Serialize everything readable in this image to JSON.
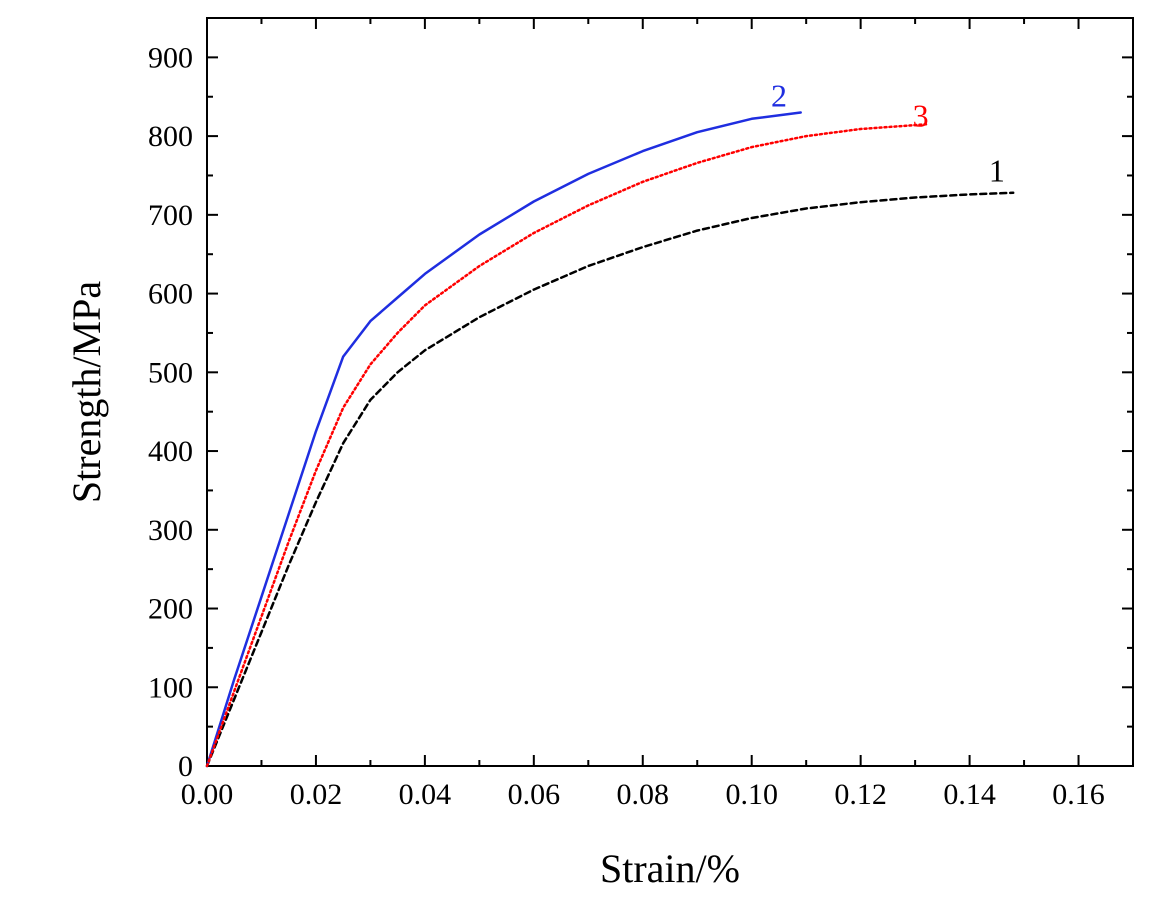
{
  "chart_data": {
    "type": "line",
    "title": "",
    "xlabel": "Strain/%",
    "ylabel": "Strength/MPa",
    "xlim": [
      0,
      0.17
    ],
    "ylim": [
      0,
      950
    ],
    "x_ticks": [
      0.0,
      0.02,
      0.04,
      0.06,
      0.08,
      0.1,
      0.12,
      0.14,
      0.16
    ],
    "x_tick_labels": [
      "0.00",
      "0.02",
      "0.04",
      "0.06",
      "0.08",
      "0.10",
      "0.12",
      "0.14",
      "0.16"
    ],
    "y_ticks": [
      0,
      100,
      200,
      300,
      400,
      500,
      600,
      700,
      800,
      900
    ],
    "y_tick_labels": [
      "0",
      "100",
      "200",
      "300",
      "400",
      "500",
      "600",
      "700",
      "800",
      "900"
    ],
    "grid": false,
    "series": [
      {
        "label": "1",
        "color": "#000000",
        "dash": "dashed",
        "label_at": [
          0.145,
          755
        ],
        "x": [
          0,
          0.005,
          0.01,
          0.015,
          0.02,
          0.025,
          0.03,
          0.035,
          0.04,
          0.05,
          0.06,
          0.07,
          0.08,
          0.09,
          0.1,
          0.11,
          0.12,
          0.13,
          0.14,
          0.148
        ],
        "y": [
          0,
          85,
          170,
          255,
          335,
          410,
          465,
          500,
          528,
          570,
          605,
          635,
          659,
          680,
          696,
          708,
          716,
          722,
          726,
          728
        ]
      },
      {
        "label": "2",
        "color": "#1f2ee0",
        "dash": "solid",
        "label_at": [
          0.105,
          850
        ],
        "x": [
          0,
          0.005,
          0.01,
          0.015,
          0.02,
          0.025,
          0.03,
          0.035,
          0.04,
          0.05,
          0.06,
          0.07,
          0.08,
          0.09,
          0.1,
          0.109
        ],
        "y": [
          0,
          110,
          215,
          320,
          425,
          520,
          565,
          595,
          625,
          675,
          717,
          752,
          781,
          805,
          822,
          830
        ]
      },
      {
        "label": "3",
        "color": "#ff0000",
        "dash": "dotted",
        "label_at": [
          0.131,
          825
        ],
        "x": [
          0,
          0.005,
          0.01,
          0.015,
          0.02,
          0.025,
          0.03,
          0.035,
          0.04,
          0.05,
          0.06,
          0.07,
          0.08,
          0.09,
          0.1,
          0.11,
          0.12,
          0.13,
          0.132
        ],
        "y": [
          0,
          95,
          190,
          285,
          375,
          455,
          510,
          550,
          585,
          635,
          677,
          712,
          742,
          766,
          786,
          800,
          809,
          814,
          815
        ]
      }
    ]
  }
}
